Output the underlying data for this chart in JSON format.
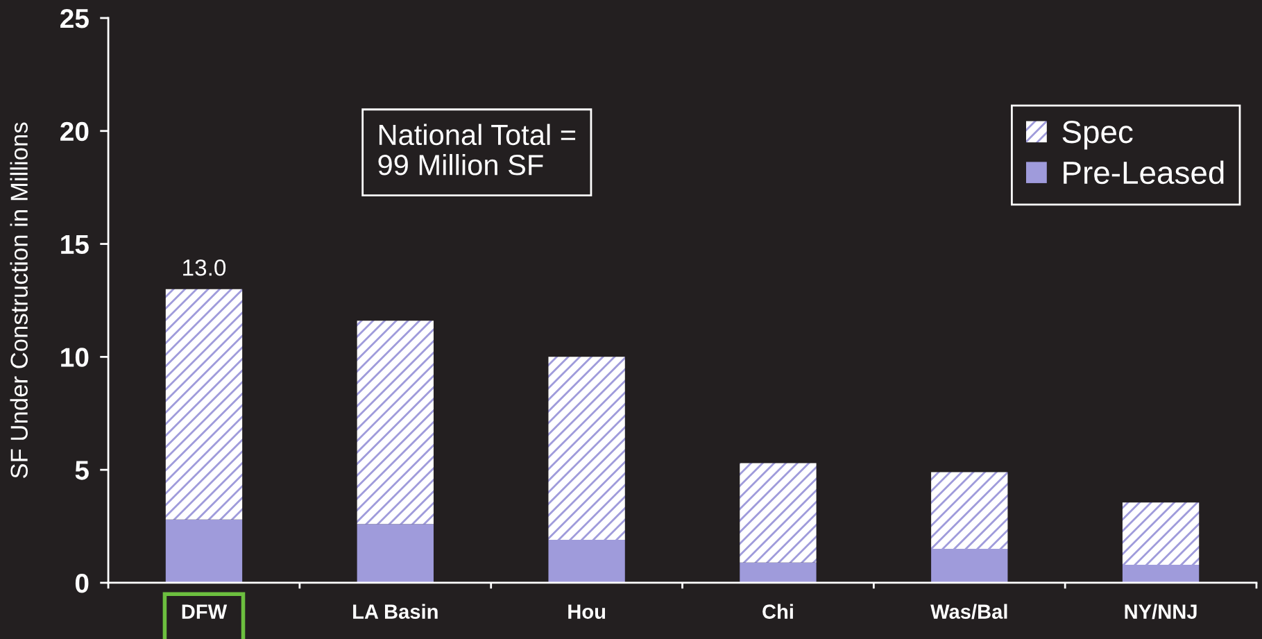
{
  "chart_data": {
    "type": "bar",
    "ylabel": "SF Under Construction in Millions",
    "categories": [
      "DFW",
      "LA Basin",
      "Hou",
      "Chi",
      "Was/Bal",
      "NY/NNJ"
    ],
    "stacked": true,
    "series": [
      {
        "name": "Pre-Leased",
        "color": "#9f9bdb",
        "values": [
          2.8,
          2.6,
          1.9,
          0.9,
          1.5,
          0.8
        ]
      },
      {
        "name": "Spec",
        "color": "#9f9bdb",
        "values": [
          10.2,
          9.0,
          8.1,
          4.4,
          3.4,
          2.75
        ]
      }
    ],
    "totals": [
      "13.0",
      null,
      null,
      null,
      null,
      null
    ],
    "ylim": [
      0,
      25
    ],
    "yticks": [
      0,
      5,
      10,
      15,
      20,
      25
    ],
    "annotations": [
      "National Total =\n99 Million SF"
    ],
    "legend": "top right",
    "grid": false
  }
}
